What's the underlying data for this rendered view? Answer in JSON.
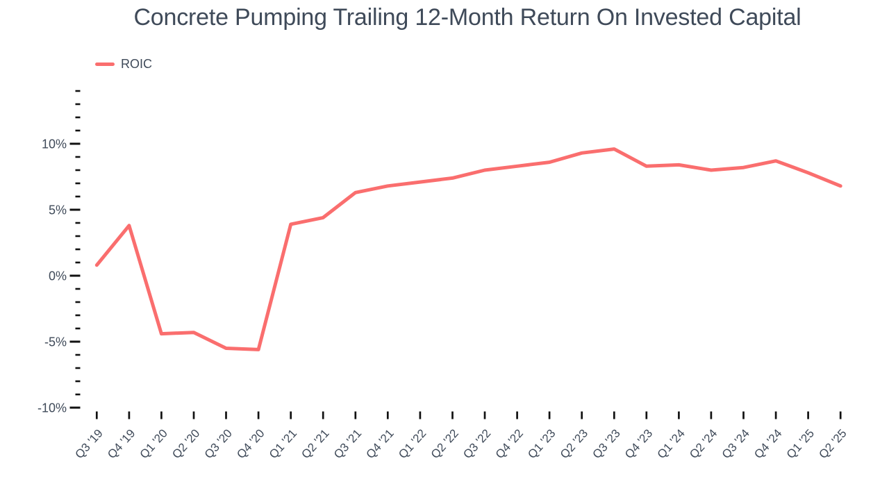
{
  "chart": {
    "title": "Concrete Pumping Trailing 12-Month Return On Invested Capital",
    "legend": {
      "label": "ROIC",
      "color": "#fa6e6e"
    }
  },
  "chart_data": {
    "type": "line",
    "title": "Concrete Pumping Trailing 12-Month Return On Invested Capital",
    "xlabel": "",
    "ylabel": "",
    "categories": [
      "Q3 '19",
      "Q4 '19",
      "Q1 '20",
      "Q2 '20",
      "Q3 '20",
      "Q4 '20",
      "Q1 '21",
      "Q2 '21",
      "Q3 '21",
      "Q4 '21",
      "Q1 '22",
      "Q2 '22",
      "Q3 '22",
      "Q4 '22",
      "Q1 '23",
      "Q2 '23",
      "Q3 '23",
      "Q4 '23",
      "Q1 '24",
      "Q2 '24",
      "Q3 '24",
      "Q4 '24",
      "Q1 '25",
      "Q2 '25"
    ],
    "series": [
      {
        "name": "ROIC",
        "values": [
          0.8,
          3.8,
          -4.4,
          -4.3,
          -5.5,
          -5.6,
          3.9,
          4.4,
          6.3,
          6.8,
          7.1,
          7.4,
          8.0,
          8.3,
          8.6,
          9.3,
          9.6,
          8.3,
          8.4,
          8.0,
          8.2,
          8.7,
          7.8,
          6.8
        ]
      }
    ],
    "ylim": [
      -10,
      14
    ],
    "y_major_ticks": [
      -10,
      -5,
      0,
      5,
      10
    ],
    "y_major_tick_labels": [
      "-10%",
      "-5%",
      "0%",
      "5%",
      "10%"
    ],
    "y_minor_tick_step": 1,
    "y_tick_format": "percent",
    "grid": false,
    "legend_position": "top-left",
    "line_color": "#fa6e6e",
    "text_color": "#3f4a59",
    "tick_color": "#111111",
    "background": "#ffffff"
  }
}
